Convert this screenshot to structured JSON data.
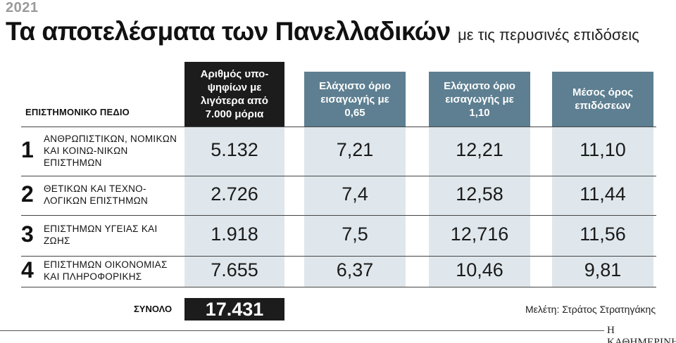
{
  "header": {
    "year": "2021",
    "title": "Τα αποτελέσματα των Πανελλαδικών",
    "subtitle": "με τις περυσινές επιδόσεις"
  },
  "chart_data": {
    "type": "table",
    "row_header": "ΕΠΙΣΤΗΜΟΝΙΚΟ ΠΕΔΙΟ",
    "columns": [
      "Αριθμός υπο-ψηφίων με λιγότερα από 7.000 μόρια",
      "Ελάχιστο όριο εισαγωγής με 0,65",
      "Ελάχιστο όριο εισαγωγής με 1,10",
      "Μέσος όρος επιδόσεων"
    ],
    "rows": [
      {
        "num": "1",
        "label": "ΑΝΘΡΩΠΙΣΤΙΚΩΝ, ΝΟΜΙΚΩΝ ΚΑΙ ΚΟΙΝΩ-ΝΙΚΩΝ ΕΠΙΣΤΗΜΩΝ",
        "values": [
          "5.132",
          "7,21",
          "12,21",
          "11,10"
        ]
      },
      {
        "num": "2",
        "label": "ΘΕΤΙΚΩΝ ΚΑΙ ΤΕΧΝΟ-ΛΟΓΙΚΩΝ ΕΠΙΣΤΗΜΩΝ",
        "values": [
          "2.726",
          "7,4",
          "12,58",
          "11,44"
        ]
      },
      {
        "num": "3",
        "label": "ΕΠΙΣΤΗΜΩΝ ΥΓΕΙΑΣ ΚΑΙ ΖΩΗΣ",
        "values": [
          "1.918",
          "7,5",
          "12,716",
          "11,56"
        ]
      },
      {
        "num": "4",
        "label": "ΕΠΙΣΤΗΜΩΝ ΟΙΚΟΝΟΜΙΑΣ ΚΑΙ ΠΛΗΡΟΦΟΡΙΚΗΣ",
        "values": [
          "7.655",
          "6,37",
          "10,46",
          "9,81"
        ]
      }
    ],
    "total_label": "ΣΥΝΟΛΟ",
    "total_value": "17.431",
    "colors": {
      "dark_header": "#1c1c1c",
      "blue_header": "#5d7f91",
      "cell_bg": "#dfe7ec"
    }
  },
  "footer": {
    "source": "Μελέτη: Στράτος Στρατηγάκης",
    "brand": "Η ΚΑΘΗΜΕΡΙΝΗ"
  }
}
